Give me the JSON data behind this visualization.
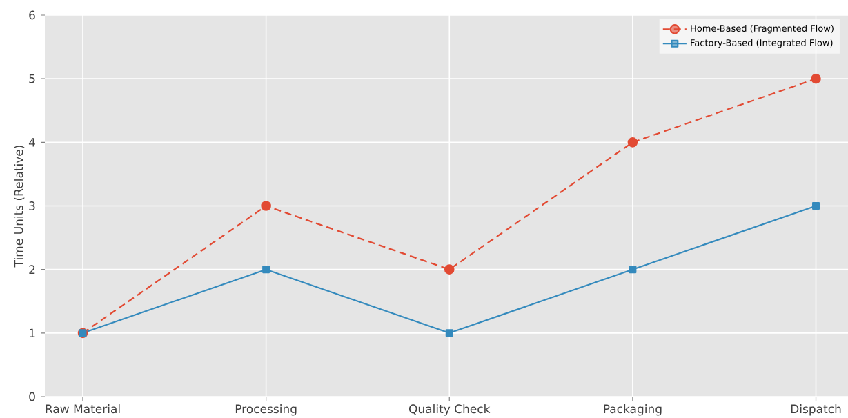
{
  "chart_data": {
    "type": "line",
    "ylabel": "Time Units (Relative)",
    "categories": [
      "Raw Material",
      "Processing",
      "Quality Check",
      "Packaging",
      "Dispatch"
    ],
    "series": [
      {
        "name": "Home-Based (Fragmented Flow)",
        "color": "#e24a33",
        "values": [
          1,
          3,
          2,
          4,
          5
        ],
        "marker": "circle",
        "line_style": "dashed"
      },
      {
        "name": "Factory-Based (Integrated Flow)",
        "color": "#348abd",
        "values": [
          1,
          2,
          1,
          2,
          3
        ],
        "marker": "square",
        "line_style": "solid"
      }
    ],
    "ylim": [
      0,
      6
    ],
    "yticks": [
      0,
      1,
      2,
      3,
      4,
      5,
      6
    ],
    "grid": true,
    "legend": "top right"
  }
}
